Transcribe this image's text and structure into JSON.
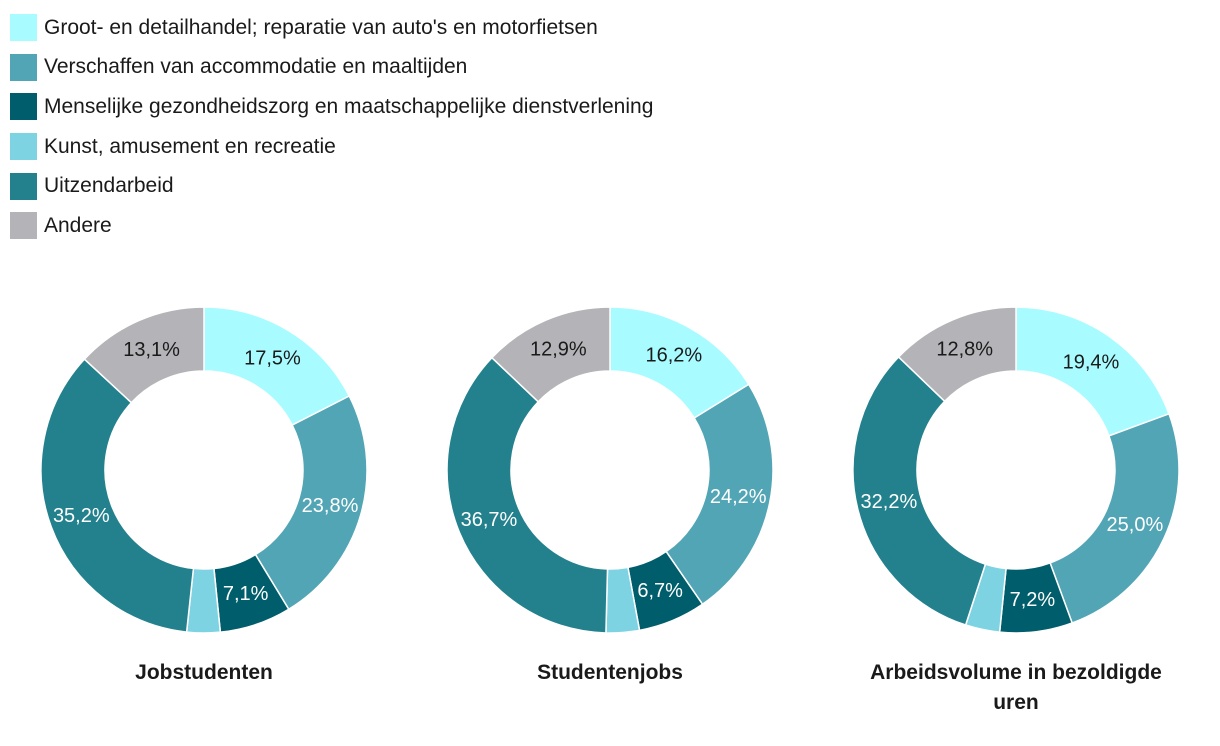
{
  "legend": {
    "items": [
      {
        "label": "Groot- en detailhandel; reparatie van auto's en motorfietsen",
        "color": "#a8fcff"
      },
      {
        "label": "Verschaffen van accommodatie en maaltijden",
        "color": "#52a5b5"
      },
      {
        "label": "Menselijke gezondheidszorg en maatschappelijke dienstverlening",
        "color": "#005d6b"
      },
      {
        "label": "Kunst, amusement en recreatie",
        "color": "#7ed3e3"
      },
      {
        "label": "Uitzendarbeid",
        "color": "#22818d"
      },
      {
        "label": "Andere",
        "color": "#b3b3b8"
      }
    ]
  },
  "chart_data": [
    {
      "type": "pie",
      "variant": "donut",
      "title": "Jobstudenten",
      "categories": [
        "Groot- en detailhandel; reparatie van auto's en motorfietsen",
        "Verschaffen van accommodatie en maaltijden",
        "Menselijke gezondheidszorg en maatschappelijke dienstverlening",
        "Kunst, amusement en recreatie",
        "Uitzendarbeid",
        "Andere"
      ],
      "values": [
        17.5,
        23.8,
        7.1,
        3.3,
        35.2,
        13.1
      ],
      "labels": [
        "17,5%",
        "23,8%",
        "7,1%",
        "",
        "35,2%",
        "13,1%"
      ]
    },
    {
      "type": "pie",
      "variant": "donut",
      "title": "Studentenjobs",
      "categories": [
        "Groot- en detailhandel; reparatie van auto's en motorfietsen",
        "Verschaffen van accommodatie en maaltijden",
        "Menselijke gezondheidszorg en maatschappelijke dienstverlening",
        "Kunst, amusement en recreatie",
        "Uitzendarbeid",
        "Andere"
      ],
      "values": [
        16.2,
        24.2,
        6.7,
        3.3,
        36.7,
        12.9
      ],
      "labels": [
        "16,2%",
        "24,2%",
        "6,7%",
        "",
        "36,7%",
        "12,9%"
      ]
    },
    {
      "type": "pie",
      "variant": "donut",
      "title": "Arbeidsvolume in bezoldigde uren",
      "categories": [
        "Groot- en detailhandel; reparatie van auto's en motorfietsen",
        "Verschaffen van accommodatie en maaltijden",
        "Menselijke gezondheidszorg en maatschappelijke dienstverlening",
        "Kunst, amusement en recreatie",
        "Uitzendarbeid",
        "Andere"
      ],
      "values": [
        19.4,
        25.0,
        7.2,
        3.4,
        32.2,
        12.8
      ],
      "labels": [
        "19,4%",
        "25,0%",
        "7,2%",
        "",
        "32,2%",
        "12,8%"
      ]
    }
  ]
}
